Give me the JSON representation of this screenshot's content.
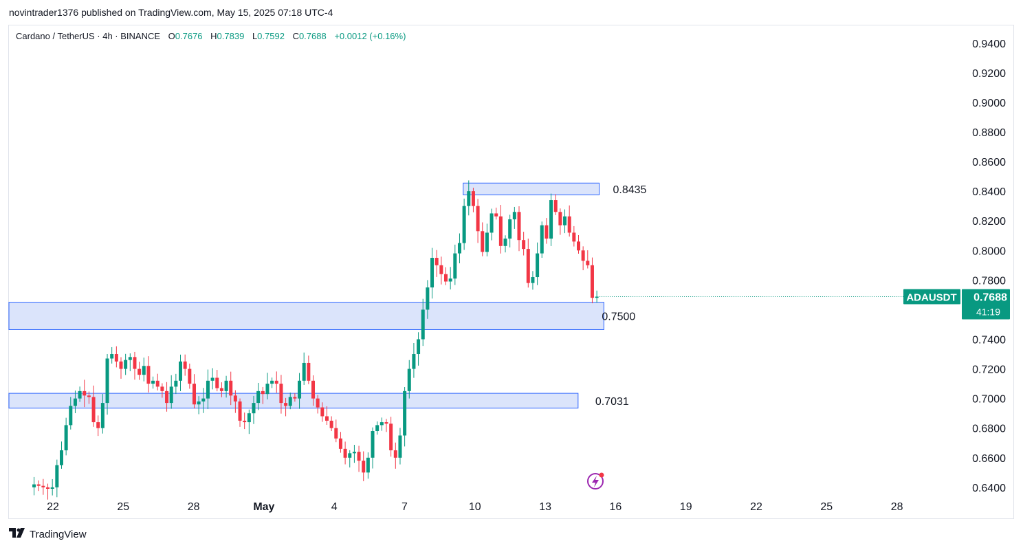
{
  "header": {
    "published_line": "novintrader1376 published on TradingView.com, May 15, 2025 07:18 UTC-4"
  },
  "legend": {
    "symbol": "Cardano / TetherUS · 4h · BINANCE",
    "open_label": "O",
    "open": "0.7676",
    "high_label": "H",
    "high": "0.7839",
    "low_label": "L",
    "low": "0.7592",
    "close_label": "C",
    "close": "0.7688",
    "change": "+0.0012 (+0.16%)"
  },
  "price_tag": {
    "ticker": "ADAUSDT",
    "price": "0.7688",
    "countdown": "41:19"
  },
  "footer": {
    "brand": "TradingView"
  },
  "colors": {
    "up": "#089981",
    "down": "#f23645",
    "zone_fill": "#d7e1fb",
    "zone_border": "#2962ff"
  },
  "chart_data": {
    "type": "candlestick",
    "symbol": "ADAUSDT",
    "timeframe": "4h",
    "y_ticks": [
      "0.9400",
      "0.9200",
      "0.9000",
      "0.8800",
      "0.8600",
      "0.8400",
      "0.8200",
      "0.8000",
      "0.7800",
      "0.7600",
      "0.7400",
      "0.7200",
      "0.7000",
      "0.6800",
      "0.6600",
      "0.6400"
    ],
    "ylim": [
      0.639,
      0.945
    ],
    "x_ticks": [
      {
        "label": "22",
        "day": 22
      },
      {
        "label": "25",
        "day": 25
      },
      {
        "label": "28",
        "day": 28
      },
      {
        "label": "May",
        "day": 31
      },
      {
        "label": "4",
        "day": 34
      },
      {
        "label": "7",
        "day": 37
      },
      {
        "label": "10",
        "day": 40
      },
      {
        "label": "13",
        "day": 43
      },
      {
        "label": "16",
        "day": 46
      },
      {
        "label": "19",
        "day": 49
      },
      {
        "label": "22",
        "day": 52
      },
      {
        "label": "25",
        "day": 55
      },
      {
        "label": "28",
        "day": 58
      }
    ],
    "x_range_days": [
      20.1,
      60
    ],
    "zones": [
      {
        "label": "0.8435",
        "low": 0.8375,
        "high": 0.8455,
        "from_day": 39.5,
        "to_day": 45.3
      },
      {
        "label": "0.7500",
        "low": 0.7465,
        "high": 0.765,
        "from_day": 20.1,
        "to_day": 45.5
      },
      {
        "label": "0.7031",
        "low": 0.6935,
        "high": 0.7035,
        "from_day": 20.1,
        "to_day": 44.4
      }
    ],
    "last_price": 0.7688,
    "candles_note": "approximate path of closes read from chart",
    "close_path": [
      0.64,
      0.642,
      0.641,
      0.64,
      0.639,
      0.64,
      0.655,
      0.665,
      0.682,
      0.695,
      0.7,
      0.705,
      0.702,
      0.701,
      0.684,
      0.68,
      0.697,
      0.727,
      0.73,
      0.725,
      0.72,
      0.726,
      0.728,
      0.72,
      0.716,
      0.722,
      0.71,
      0.712,
      0.708,
      0.705,
      0.697,
      0.708,
      0.712,
      0.725,
      0.72,
      0.71,
      0.696,
      0.698,
      0.7,
      0.712,
      0.714,
      0.707,
      0.705,
      0.712,
      0.702,
      0.698,
      0.685,
      0.684,
      0.69,
      0.697,
      0.705,
      0.703,
      0.71,
      0.712,
      0.71,
      0.697,
      0.695,
      0.701,
      0.7,
      0.712,
      0.724,
      0.712,
      0.7,
      0.694,
      0.688,
      0.685,
      0.68,
      0.673,
      0.666,
      0.66,
      0.663,
      0.664,
      0.658,
      0.65,
      0.66,
      0.678,
      0.682,
      0.684,
      0.683,
      0.665,
      0.66,
      0.675,
      0.705,
      0.72,
      0.73,
      0.74,
      0.76,
      0.775,
      0.795,
      0.79,
      0.784,
      0.779,
      0.781,
      0.798,
      0.805,
      0.83,
      0.84,
      0.83,
      0.813,
      0.799,
      0.812,
      0.825,
      0.823,
      0.803,
      0.808,
      0.821,
      0.826,
      0.807,
      0.801,
      0.778,
      0.782,
      0.798,
      0.817,
      0.808,
      0.834,
      0.826,
      0.817,
      0.823,
      0.812,
      0.806,
      0.8,
      0.793,
      0.79,
      0.768,
      0.7688
    ]
  }
}
